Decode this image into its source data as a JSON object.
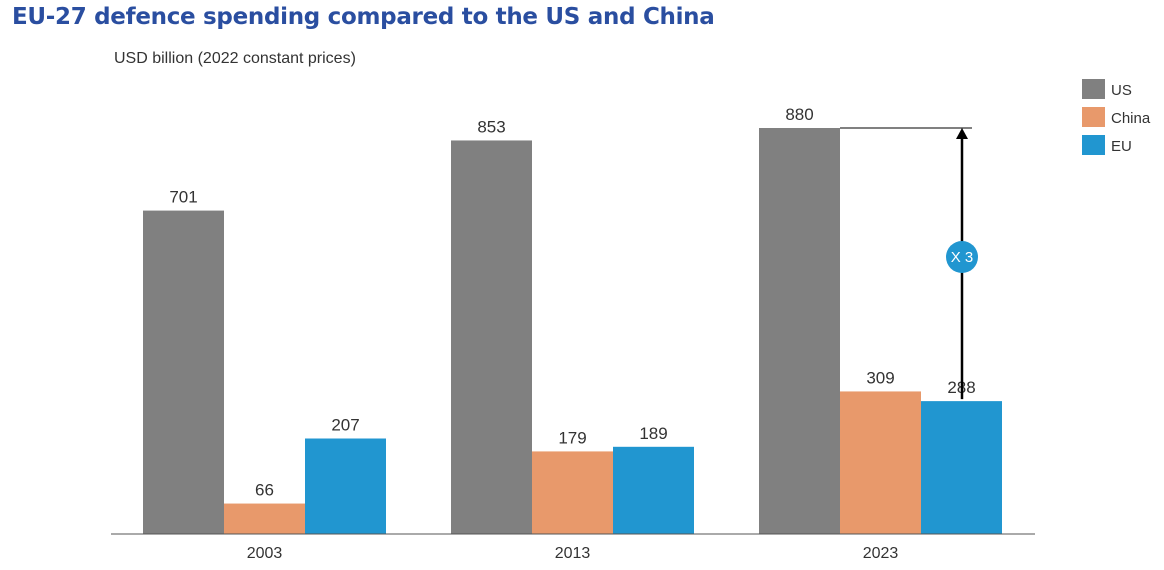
{
  "title": "EU-27 defence spending compared to the US and China",
  "unit_label": "USD billion (2022 constant prices)",
  "colors": {
    "US": "#808080",
    "China": "#e8996b",
    "EU": "#2196d0",
    "annotation": "#000000"
  },
  "chart_data": {
    "type": "bar",
    "title": "EU-27 defence spending compared to the US and China",
    "ylabel": "USD billion (2022 constant prices)",
    "xlabel": "",
    "categories": [
      "2003",
      "2013",
      "2023"
    ],
    "series": [
      {
        "name": "US",
        "values": [
          701,
          853,
          880
        ]
      },
      {
        "name": "China",
        "values": [
          66,
          179,
          309
        ]
      },
      {
        "name": "EU",
        "values": [
          207,
          189,
          288
        ]
      }
    ],
    "ylim": [
      0,
      880
    ],
    "grid": false,
    "legend": "top-right",
    "annotation": {
      "text": "X 3",
      "category": "2023",
      "from_series": "EU",
      "to_series": "US"
    }
  }
}
